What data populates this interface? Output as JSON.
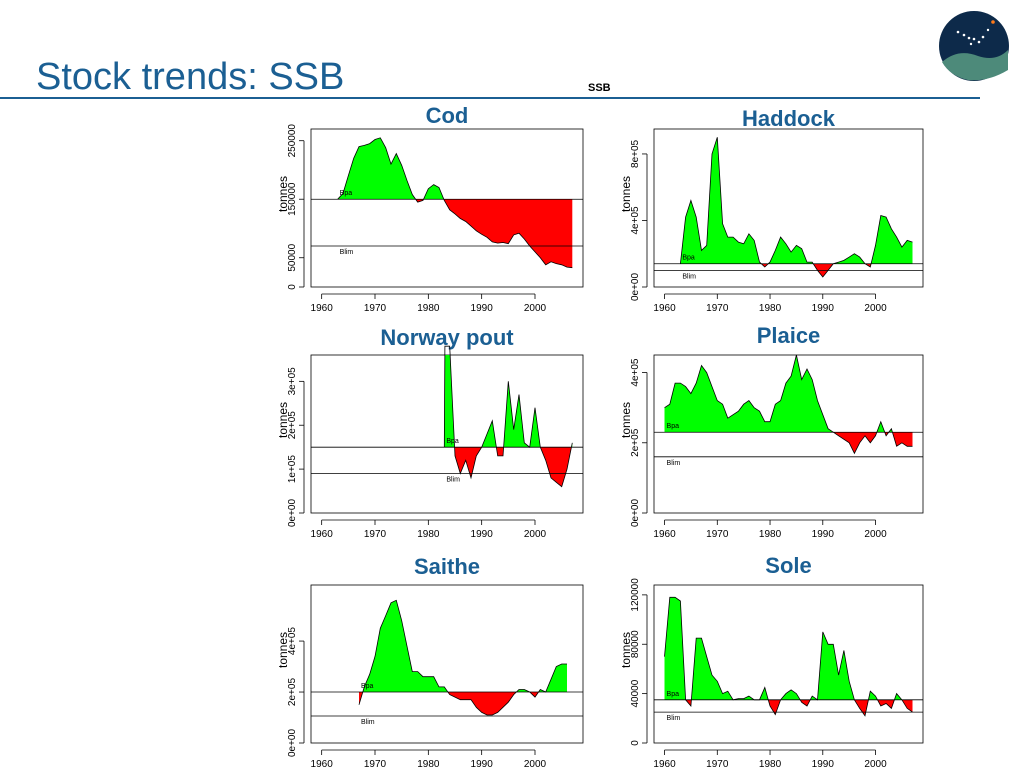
{
  "slide": {
    "title": "Stock trends: SSB",
    "subtitle": "SSB"
  },
  "colors": {
    "title": "#1b5f93",
    "above": "#00ff00",
    "below": "#ff0000",
    "logo_bg": "#0d2a4a",
    "logo_accent": "#4d8a7a"
  },
  "icons": {
    "logo": "constellation-logo-icon"
  },
  "chart_data": [
    {
      "type": "area",
      "title": "Cod",
      "ylabel": "tonnes",
      "xlim": [
        1958,
        2009
      ],
      "ylim": [
        0,
        270000
      ],
      "xticks": [
        1960,
        1970,
        1980,
        1990,
        2000
      ],
      "yticks": [
        0,
        50000,
        150000,
        250000
      ],
      "ytick_labels": [
        "0",
        "50000",
        "150000",
        "250000"
      ],
      "reference_lines": [
        {
          "label": "Bpa",
          "value": 150000
        },
        {
          "label": "Blim",
          "value": 70000
        }
      ],
      "x": [
        1963,
        1964,
        1965,
        1966,
        1967,
        1968,
        1969,
        1970,
        1971,
        1972,
        1973,
        1974,
        1975,
        1976,
        1977,
        1978,
        1979,
        1980,
        1981,
        1982,
        1983,
        1984,
        1985,
        1986,
        1987,
        1988,
        1989,
        1990,
        1991,
        1992,
        1993,
        1994,
        1995,
        1996,
        1997,
        1998,
        1999,
        2000,
        2001,
        2002,
        2003,
        2004,
        2005,
        2006,
        2007
      ],
      "y": [
        150000,
        160000,
        190000,
        220000,
        240000,
        242000,
        245000,
        252000,
        255000,
        238000,
        210000,
        228000,
        208000,
        182000,
        158000,
        145000,
        148000,
        168000,
        175000,
        170000,
        148000,
        132000,
        125000,
        117000,
        112000,
        104000,
        96000,
        90000,
        85000,
        77000,
        75000,
        76000,
        74000,
        89000,
        92000,
        82000,
        70000,
        60000,
        50000,
        38000,
        43000,
        40000,
        38000,
        34000,
        33000
      ]
    },
    {
      "type": "area",
      "title": "Haddock",
      "ylabel": "tonnes",
      "xlim": [
        1958,
        2009
      ],
      "ylim": [
        0,
        950000
      ],
      "xticks": [
        1960,
        1970,
        1980,
        1990,
        2000
      ],
      "yticks": [
        0,
        400000,
        800000
      ],
      "ytick_labels": [
        "0e+00",
        "4e+05",
        "8e+05"
      ],
      "reference_lines": [
        {
          "label": "Bpa",
          "value": 140000
        },
        {
          "label": "Blim",
          "value": 100000
        }
      ],
      "x": [
        1963,
        1964,
        1965,
        1966,
        1967,
        1968,
        1969,
        1970,
        1971,
        1972,
        1973,
        1974,
        1975,
        1976,
        1977,
        1978,
        1979,
        1980,
        1981,
        1982,
        1983,
        1984,
        1985,
        1986,
        1987,
        1988,
        1989,
        1990,
        1991,
        1992,
        1993,
        1994,
        1995,
        1996,
        1997,
        1998,
        1999,
        2000,
        2001,
        2002,
        2003,
        2004,
        2005,
        2006,
        2007
      ],
      "y": [
        140000,
        420000,
        520000,
        420000,
        220000,
        250000,
        800000,
        900000,
        380000,
        300000,
        300000,
        270000,
        260000,
        320000,
        280000,
        150000,
        120000,
        150000,
        220000,
        300000,
        260000,
        210000,
        250000,
        230000,
        150000,
        150000,
        100000,
        60000,
        100000,
        140000,
        150000,
        160000,
        180000,
        200000,
        180000,
        140000,
        120000,
        250000,
        430000,
        420000,
        350000,
        300000,
        240000,
        280000,
        270000
      ]
    },
    {
      "type": "area",
      "title": "Norway pout",
      "ylabel": "tonnes",
      "xlim": [
        1958,
        2009
      ],
      "ylim": [
        0,
        360000
      ],
      "xticks": [
        1960,
        1970,
        1980,
        1990,
        2000
      ],
      "yticks": [
        0,
        100000,
        200000,
        300000
      ],
      "ytick_labels": [
        "0e+00",
        "1e+05",
        "2e+05",
        "3e+05"
      ],
      "reference_lines": [
        {
          "label": "Bpa",
          "value": 150000
        },
        {
          "label": "Blim",
          "value": 90000
        }
      ],
      "x": [
        1983,
        1983.1,
        1984,
        1985,
        1986,
        1987,
        1988,
        1989,
        1990,
        1991,
        1992,
        1993,
        1994,
        1995,
        1996,
        1997,
        1998,
        1999,
        2000,
        2001,
        2002,
        2003,
        2004,
        2005,
        2006,
        2007
      ],
      "y": [
        150000,
        380000,
        380000,
        130000,
        90000,
        120000,
        80000,
        130000,
        150000,
        180000,
        210000,
        130000,
        130000,
        300000,
        190000,
        270000,
        160000,
        150000,
        240000,
        150000,
        120000,
        80000,
        70000,
        60000,
        100000,
        160000
      ]
    },
    {
      "type": "area",
      "title": "Plaice",
      "ylabel": "tonnes",
      "xlim": [
        1958,
        2009
      ],
      "ylim": [
        0,
        450000
      ],
      "xticks": [
        1960,
        1970,
        1980,
        1990,
        2000
      ],
      "yticks": [
        0,
        200000,
        400000
      ],
      "ytick_labels": [
        "0e+00",
        "2e+05",
        "4e+05"
      ],
      "reference_lines": [
        {
          "label": "Bpa",
          "value": 230000
        },
        {
          "label": "Blim",
          "value": 160000
        }
      ],
      "x": [
        1960,
        1961,
        1962,
        1963,
        1964,
        1965,
        1966,
        1967,
        1968,
        1969,
        1970,
        1971,
        1972,
        1973,
        1974,
        1975,
        1976,
        1977,
        1978,
        1979,
        1980,
        1981,
        1982,
        1983,
        1984,
        1985,
        1986,
        1987,
        1988,
        1989,
        1990,
        1991,
        1992,
        1993,
        1994,
        1995,
        1996,
        1997,
        1998,
        1999,
        2000,
        2001,
        2002,
        2003,
        2004,
        2005,
        2006,
        2007
      ],
      "y": [
        300000,
        310000,
        370000,
        370000,
        360000,
        340000,
        370000,
        420000,
        400000,
        360000,
        320000,
        310000,
        270000,
        280000,
        290000,
        310000,
        320000,
        300000,
        290000,
        260000,
        260000,
        310000,
        320000,
        370000,
        390000,
        450000,
        380000,
        410000,
        380000,
        320000,
        280000,
        240000,
        230000,
        220000,
        210000,
        200000,
        170000,
        200000,
        220000,
        200000,
        220000,
        260000,
        220000,
        240000,
        190000,
        200000,
        190000,
        190000
      ]
    },
    {
      "type": "area",
      "title": "Saithe",
      "ylabel": "tonnes",
      "xlim": [
        1958,
        2009
      ],
      "ylim": [
        0,
        620000
      ],
      "xticks": [
        1960,
        1970,
        1980,
        1990,
        2000
      ],
      "yticks": [
        0,
        200000,
        400000
      ],
      "ytick_labels": [
        "0e+00",
        "2e+05",
        "4e+05"
      ],
      "reference_lines": [
        {
          "label": "Bpa",
          "value": 200000
        },
        {
          "label": "Blim",
          "value": 106000
        }
      ],
      "x": [
        1967,
        1968,
        1969,
        1970,
        1971,
        1972,
        1973,
        1974,
        1975,
        1976,
        1977,
        1978,
        1979,
        1980,
        1981,
        1982,
        1983,
        1984,
        1985,
        1986,
        1987,
        1988,
        1989,
        1990,
        1991,
        1992,
        1993,
        1994,
        1995,
        1996,
        1997,
        1998,
        1999,
        2000,
        2001,
        2002,
        2003,
        2004,
        2005,
        2006
      ],
      "y": [
        150000,
        220000,
        270000,
        340000,
        450000,
        500000,
        550000,
        560000,
        480000,
        380000,
        280000,
        280000,
        260000,
        260000,
        260000,
        220000,
        220000,
        190000,
        180000,
        170000,
        170000,
        170000,
        140000,
        120000,
        110000,
        110000,
        120000,
        140000,
        160000,
        190000,
        210000,
        210000,
        200000,
        180000,
        210000,
        200000,
        250000,
        300000,
        310000,
        310000
      ]
    },
    {
      "type": "area",
      "title": "Sole",
      "ylabel": "tonnes",
      "xlim": [
        1958,
        2009
      ],
      "ylim": [
        0,
        128000
      ],
      "xticks": [
        1960,
        1970,
        1980,
        1990,
        2000
      ],
      "yticks": [
        0,
        40000,
        80000,
        120000
      ],
      "ytick_labels": [
        "0",
        "40000",
        "80000",
        "120000"
      ],
      "reference_lines": [
        {
          "label": "Bpa",
          "value": 35000
        },
        {
          "label": "Blim",
          "value": 25000
        }
      ],
      "x": [
        1960,
        1961,
        1962,
        1963,
        1964,
        1965,
        1966,
        1967,
        1968,
        1969,
        1970,
        1971,
        1972,
        1973,
        1974,
        1975,
        1976,
        1977,
        1978,
        1979,
        1980,
        1981,
        1982,
        1983,
        1984,
        1985,
        1986,
        1987,
        1988,
        1989,
        1990,
        1991,
        1992,
        1993,
        1994,
        1995,
        1996,
        1997,
        1998,
        1999,
        2000,
        2001,
        2002,
        2003,
        2004,
        2005,
        2006,
        2007
      ],
      "y": [
        70000,
        118000,
        118000,
        115000,
        35000,
        30000,
        85000,
        85000,
        70000,
        55000,
        50000,
        40000,
        42000,
        35000,
        36000,
        36000,
        38000,
        35000,
        35000,
        45000,
        30000,
        23000,
        35000,
        40000,
        43000,
        40000,
        33000,
        30000,
        38000,
        35000,
        90000,
        80000,
        80000,
        55000,
        75000,
        50000,
        35000,
        28000,
        22000,
        42000,
        38000,
        30000,
        32000,
        28000,
        40000,
        35000,
        28000,
        25000
      ]
    }
  ]
}
